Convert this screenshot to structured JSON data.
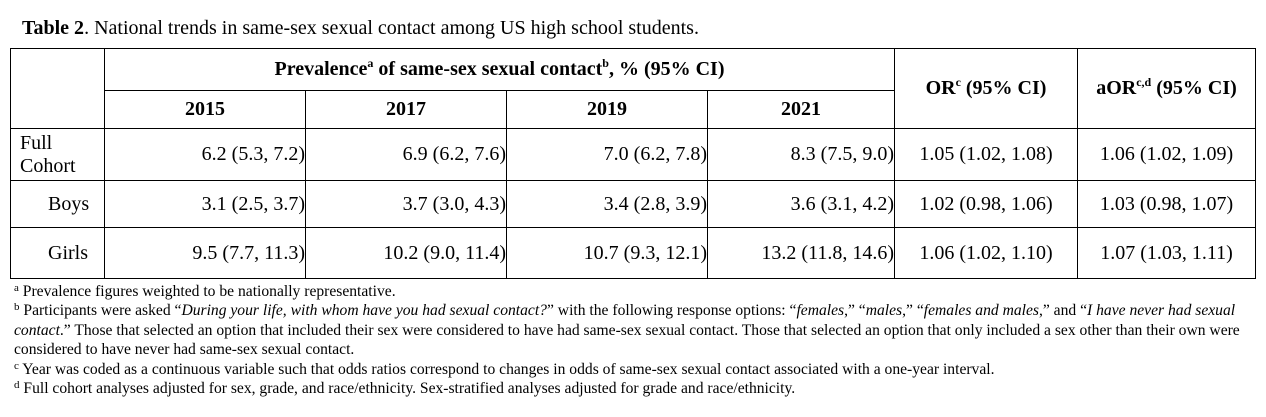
{
  "caption": {
    "label": "Table 2",
    "text": ". National trends in same-sex sexual contact among US high school students."
  },
  "header": {
    "prevalence": {
      "pre": "Prevalence",
      "sup_a": "a",
      "mid": " of same-sex sexual contact",
      "sup_b": "b",
      "post": ", % (95% CI)"
    },
    "years": [
      "2015",
      "2017",
      "2019",
      "2021"
    ],
    "or": {
      "pre": "OR",
      "sup": "c",
      "post": " (95% CI)"
    },
    "aor": {
      "pre": "aOR",
      "sup": "c,d",
      "post": " (95% CI)"
    }
  },
  "rows": [
    {
      "label_line1": "Full",
      "label_line2": "Cohort",
      "values": [
        "6.2 (5.3, 7.2)",
        "6.9 (6.2, 7.6)",
        "7.0 (6.2, 7.8)",
        "8.3 (7.5, 9.0)"
      ],
      "or": "1.05 (1.02, 1.08)",
      "aor": "1.06 (1.02, 1.09)"
    },
    {
      "label_line1": "Boys",
      "label_line2": "",
      "values": [
        "3.1 (2.5, 3.7)",
        "3.7 (3.0, 4.3)",
        "3.4 (2.8, 3.9)",
        "3.6 (3.1, 4.2)"
      ],
      "or": "1.02 (0.98, 1.06)",
      "aor": "1.03 (0.98, 1.07)"
    },
    {
      "label_line1": "Girls",
      "label_line2": "",
      "values": [
        "9.5 (7.7, 11.3)",
        "10.2 (9.0, 11.4)",
        "10.7 (9.3, 12.1)",
        "13.2 (11.8, 14.6)"
      ],
      "or": "1.06 (1.02, 1.10)",
      "aor": "1.07 (1.03, 1.11)"
    }
  ],
  "footnotes": {
    "a": {
      "mark": "a",
      "text": " Prevalence figures weighted to be nationally representative."
    },
    "b": {
      "mark": "b",
      "t1": " Participants were asked “",
      "q1": "During your life, with whom have you had sexual contact?",
      "t2": "” with the following response options: “",
      "q2": "females",
      "t3": ",” “",
      "q3": "males",
      "t4": ",” “",
      "q4": "females and males",
      "t5": ",” and “",
      "q5": "I have never had sexual contact",
      "t6": ".” Those that selected an option that included their sex were considered to have had same-sex sexual contact. Those that selected an option that only included a sex other than their own were considered to have never had same-sex sexual contact."
    },
    "c": {
      "mark": "c",
      "text": " Year was coded as a continuous variable such that odds ratios correspond to changes in odds of same-sex sexual contact associated with a one-year interval."
    },
    "d": {
      "mark": "d",
      "text": " Full cohort analyses adjusted for sex, grade, and race/ethnicity. Sex-stratified analyses adjusted for grade and race/ethnicity."
    }
  }
}
